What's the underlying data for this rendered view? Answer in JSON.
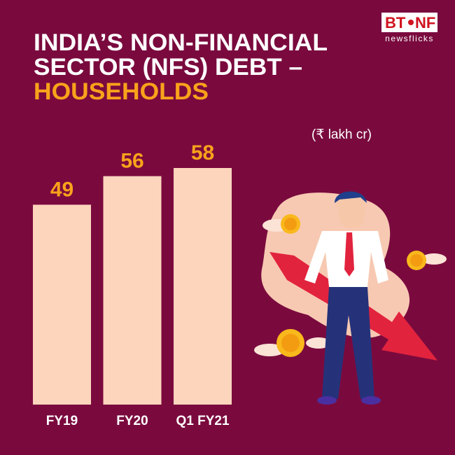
{
  "header": {
    "brand_left": "BT",
    "brand_right": "NF",
    "tagline": "newsflicks"
  },
  "chart_data": {
    "type": "bar",
    "title_lines": [
      "INDIA’S NON-FINANCIAL",
      "SECTOR (NFS) DEBT –",
      "HOUSEHOLDS"
    ],
    "title_colors": [
      "#ffffff",
      "#ffffff",
      "#f9a21b"
    ],
    "unit": "(₹ lakh cr)",
    "categories": [
      "FY19",
      "FY20",
      "Q1 FY21"
    ],
    "values": [
      49,
      56,
      58
    ],
    "color": "#fdd5bd",
    "value_label_color": "#f9a21b"
  }
}
